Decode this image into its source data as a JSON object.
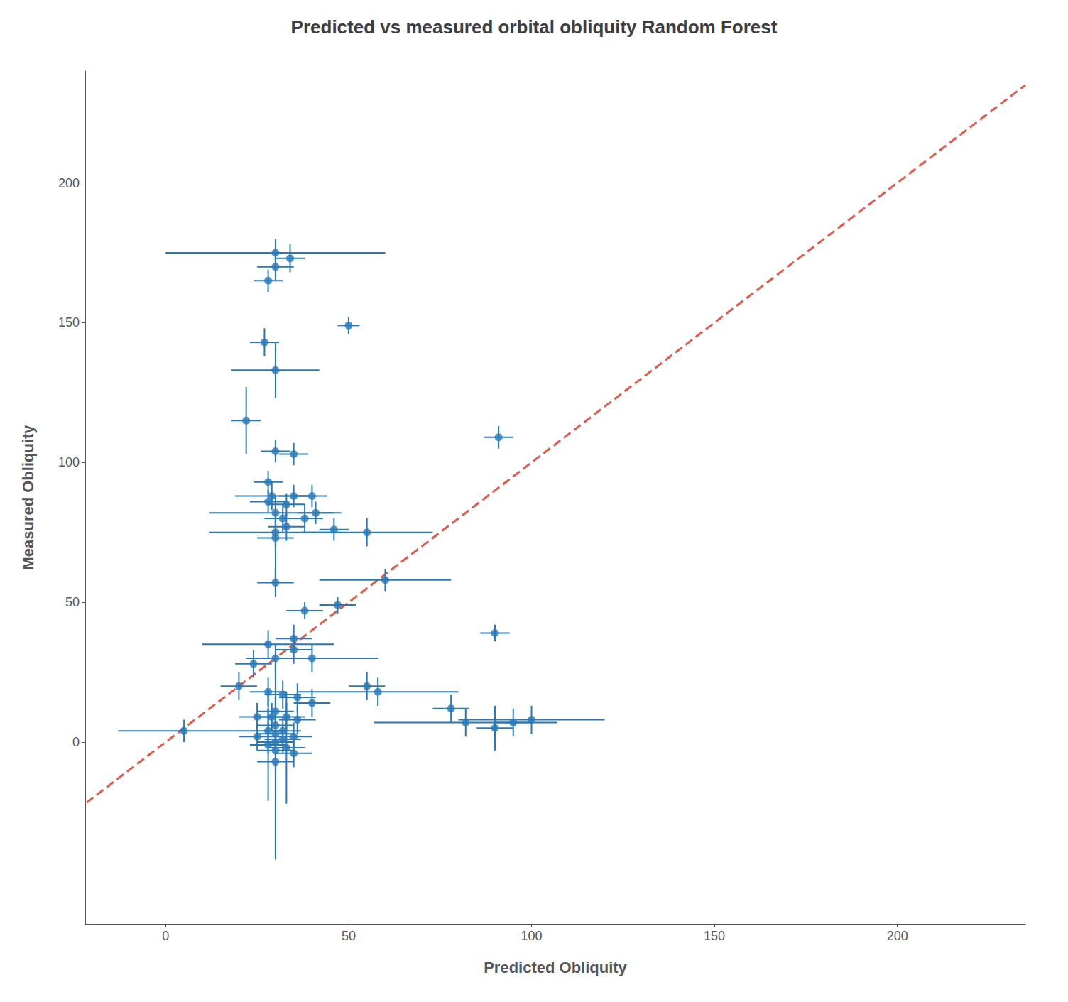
{
  "chart_data": {
    "type": "scatter",
    "title": "Predicted vs measured orbital obliquity Random Forest",
    "xlabel": "Predicted Obliquity",
    "ylabel": "Measured Obliquity",
    "xlim": [
      -22,
      235
    ],
    "ylim": [
      -65,
      240
    ],
    "xticks": [
      0,
      50,
      100,
      150,
      200
    ],
    "yticks": [
      0,
      50,
      100,
      150,
      200
    ],
    "grid": false,
    "series": [
      {
        "type": "scatter",
        "color": "#2878b5",
        "marker": "circle",
        "x": [
          30,
          34,
          30,
          28,
          27,
          30,
          50,
          22,
          30,
          35,
          91,
          28,
          29,
          35,
          40,
          28,
          33,
          30,
          41,
          32,
          38,
          33,
          46,
          30,
          55,
          30,
          60,
          30,
          47,
          38,
          35,
          28,
          35,
          30,
          40,
          24,
          90,
          55,
          58,
          20,
          28,
          32,
          36,
          40,
          30,
          25,
          29,
          33,
          36,
          30,
          32,
          28,
          30,
          35,
          25,
          32,
          30,
          28,
          33,
          30,
          35,
          30,
          5,
          82,
          90,
          95,
          100,
          78
        ],
        "values": [
          175,
          173,
          170,
          165,
          143,
          133,
          149,
          115,
          104,
          103,
          109,
          93,
          88,
          88,
          88,
          86,
          85,
          82,
          82,
          80,
          80,
          77,
          76,
          75,
          75,
          73,
          58,
          57,
          49,
          47,
          37,
          35,
          33,
          30,
          30,
          28,
          39,
          20,
          18,
          20,
          18,
          17,
          16,
          14,
          11,
          9,
          9,
          9,
          8,
          6,
          4,
          4,
          3,
          2,
          2,
          1,
          0,
          -1,
          -2,
          -3,
          -4,
          -7,
          4,
          7,
          5,
          7,
          8,
          12
        ],
        "xerr": [
          30,
          4,
          5,
          4,
          4,
          12,
          3,
          4,
          4,
          4,
          4,
          4,
          10,
          4,
          4,
          5,
          5,
          18,
          5,
          5,
          5,
          5,
          4,
          18,
          18,
          5,
          18,
          5,
          5,
          5,
          5,
          18,
          5,
          5,
          18,
          5,
          4,
          5,
          22,
          5,
          5,
          5,
          5,
          5,
          5,
          5,
          5,
          5,
          5,
          5,
          5,
          5,
          5,
          5,
          5,
          5,
          5,
          5,
          5,
          5,
          5,
          5,
          18,
          25,
          5,
          5,
          20,
          5
        ],
        "yerr": [
          5,
          5,
          5,
          4,
          5,
          10,
          3,
          12,
          4,
          4,
          4,
          4,
          5,
          4,
          4,
          4,
          4,
          4,
          4,
          5,
          5,
          5,
          4,
          5,
          5,
          15,
          4,
          5,
          3,
          3,
          5,
          5,
          5,
          5,
          5,
          5,
          3,
          5,
          5,
          5,
          5,
          5,
          5,
          5,
          5,
          5,
          5,
          5,
          5,
          5,
          5,
          8,
          5,
          5,
          5,
          5,
          10,
          20,
          20,
          5,
          5,
          35,
          4,
          5,
          8,
          5,
          5,
          5
        ]
      },
      {
        "type": "line",
        "color": "#e05a4e",
        "line_style": "dashed",
        "x": [
          -30,
          235
        ],
        "values": [
          -30,
          235
        ]
      }
    ]
  }
}
